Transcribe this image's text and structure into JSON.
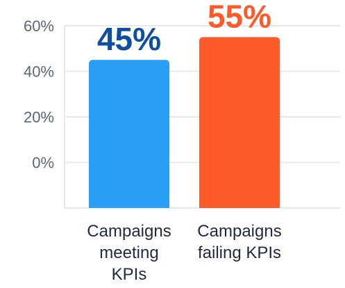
{
  "chart_data": {
    "type": "bar",
    "categories": [
      [
        "Campaigns",
        "meeting",
        "KPIs"
      ],
      [
        "Campaigns",
        "failing KPIs"
      ]
    ],
    "values": [
      45,
      55
    ],
    "data_labels": [
      "45%",
      "55%"
    ],
    "bar_colors": [
      "#2a9df4",
      "#fd5a2a"
    ],
    "label_colors": [
      "#0e4fa3",
      "#fd5a2a"
    ],
    "y_ticks": [
      {
        "value": 60,
        "label": "60%"
      },
      {
        "value": 40,
        "label": "40%"
      },
      {
        "value": 20,
        "label": "20%"
      },
      {
        "value": 0,
        "label": "0%"
      }
    ],
    "ylim": [
      -20,
      60
    ],
    "grid": true,
    "title": "",
    "xlabel": "",
    "ylabel": ""
  }
}
